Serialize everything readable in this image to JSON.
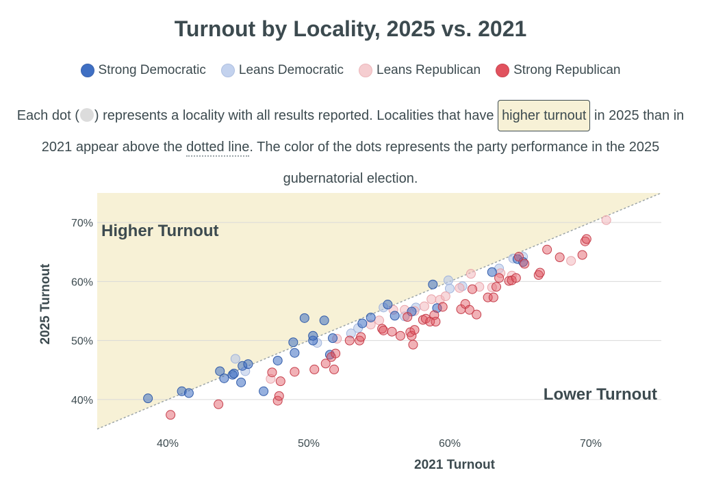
{
  "title": "Turnout by Locality, 2025 vs. 2021",
  "legend": [
    {
      "label": "Strong Democratic",
      "color": "#3f6fc3"
    },
    {
      "label": "Leans Democratic",
      "color": "#b7c8e8"
    },
    {
      "label": "Leans Republican",
      "color": "#f3c2c6"
    },
    {
      "label": "Strong Republican",
      "color": "#e1525e"
    }
  ],
  "description": {
    "part1": "Each dot (",
    "part2": ") represents a locality with all results reported. Localities that have ",
    "highlight": "higher turnout",
    "part3": " in 2025 than in 2021 appear above the ",
    "dotted": "dotted line",
    "part4": ". The color of the dots represents the party performance in the 2025 gubernatorial election."
  },
  "chart_data": {
    "type": "scatter",
    "xlabel": "2021 Turnout",
    "ylabel": "2025 Turnout",
    "xlim": [
      35,
      75
    ],
    "ylim": [
      35,
      75
    ],
    "xticks": [
      40,
      50,
      60,
      70
    ],
    "yticks": [
      40,
      50,
      60,
      70
    ],
    "xtick_labels": [
      "40%",
      "50%",
      "60%",
      "70%"
    ],
    "ytick_labels": [
      "40%",
      "50%",
      "60%",
      "70%"
    ],
    "annotations": {
      "upper_left": "Higher Turnout",
      "lower_right": "Lower Turnout"
    },
    "reference_line": "y = x",
    "series": [
      {
        "name": "Strong Democratic",
        "color": "#3f6fc3",
        "points": [
          [
            38.6,
            40.2
          ],
          [
            41.0,
            41.4
          ],
          [
            41.5,
            41.1
          ],
          [
            43.7,
            44.8
          ],
          [
            44.0,
            43.6
          ],
          [
            44.6,
            44.2
          ],
          [
            44.7,
            44.4
          ],
          [
            45.2,
            42.9
          ],
          [
            45.3,
            45.7
          ],
          [
            45.7,
            46.0
          ],
          [
            46.8,
            41.4
          ],
          [
            47.8,
            46.6
          ],
          [
            48.9,
            49.7
          ],
          [
            49.0,
            47.9
          ],
          [
            49.7,
            53.8
          ],
          [
            50.3,
            50.0
          ],
          [
            50.3,
            50.8
          ],
          [
            51.1,
            53.4
          ],
          [
            51.5,
            47.6
          ],
          [
            51.7,
            50.4
          ],
          [
            53.8,
            52.9
          ],
          [
            54.4,
            53.9
          ],
          [
            55.6,
            56.1
          ],
          [
            56.1,
            54.2
          ],
          [
            57.3,
            54.9
          ],
          [
            58.8,
            59.5
          ],
          [
            59.1,
            55.5
          ],
          [
            63.0,
            61.6
          ],
          [
            64.8,
            63.8
          ],
          [
            65.2,
            63.3
          ]
        ]
      },
      {
        "name": "Leans Democratic",
        "color": "#b7c8e8",
        "points": [
          [
            44.8,
            46.9
          ],
          [
            45.5,
            44.8
          ],
          [
            50.6,
            49.6
          ],
          [
            53.0,
            51.2
          ],
          [
            53.5,
            52.1
          ],
          [
            55.3,
            55.6
          ],
          [
            56.8,
            54.1
          ],
          [
            57.6,
            55.6
          ],
          [
            59.9,
            60.2
          ],
          [
            60.0,
            58.8
          ],
          [
            60.9,
            59.2
          ],
          [
            63.5,
            62.2
          ],
          [
            64.5,
            63.9
          ],
          [
            65.2,
            64.2
          ]
        ]
      },
      {
        "name": "Leans Republican",
        "color": "#f3c2c6",
        "points": [
          [
            47.3,
            43.5
          ],
          [
            52.0,
            50.3
          ],
          [
            54.4,
            52.7
          ],
          [
            55.0,
            53.4
          ],
          [
            56.0,
            55.2
          ],
          [
            56.8,
            55.2
          ],
          [
            57.5,
            55.0
          ],
          [
            58.2,
            55.8
          ],
          [
            58.7,
            57.0
          ],
          [
            59.3,
            56.9
          ],
          [
            59.7,
            57.5
          ],
          [
            60.7,
            58.9
          ],
          [
            61.5,
            61.3
          ],
          [
            62.1,
            59.1
          ],
          [
            63.0,
            59.0
          ],
          [
            63.6,
            61.4
          ],
          [
            64.4,
            61.0
          ],
          [
            68.6,
            63.5
          ],
          [
            71.1,
            70.4
          ]
        ]
      },
      {
        "name": "Strong Republican",
        "color": "#e1525e",
        "points": [
          [
            40.2,
            37.4
          ],
          [
            43.6,
            39.2
          ],
          [
            47.4,
            44.6
          ],
          [
            47.8,
            39.8
          ],
          [
            47.9,
            40.6
          ],
          [
            48.0,
            43.1
          ],
          [
            49.0,
            44.7
          ],
          [
            50.4,
            45.1
          ],
          [
            51.2,
            46.1
          ],
          [
            51.6,
            47.2
          ],
          [
            51.8,
            45.1
          ],
          [
            51.9,
            47.8
          ],
          [
            52.9,
            50.0
          ],
          [
            53.6,
            50.0
          ],
          [
            53.7,
            50.6
          ],
          [
            55.2,
            52.0
          ],
          [
            55.3,
            51.7
          ],
          [
            55.9,
            51.5
          ],
          [
            56.5,
            50.8
          ],
          [
            57.0,
            54.0
          ],
          [
            57.2,
            51.4
          ],
          [
            57.3,
            50.8
          ],
          [
            57.4,
            49.3
          ],
          [
            57.5,
            51.8
          ],
          [
            58.1,
            53.5
          ],
          [
            58.3,
            53.7
          ],
          [
            58.6,
            53.2
          ],
          [
            58.9,
            54.3
          ],
          [
            59.0,
            53.2
          ],
          [
            59.5,
            55.7
          ],
          [
            60.8,
            55.3
          ],
          [
            61.1,
            56.2
          ],
          [
            61.4,
            55.2
          ],
          [
            61.6,
            58.7
          ],
          [
            61.9,
            54.4
          ],
          [
            62.7,
            57.3
          ],
          [
            63.1,
            57.3
          ],
          [
            63.3,
            59.1
          ],
          [
            63.5,
            60.6
          ],
          [
            64.2,
            60.1
          ],
          [
            64.4,
            60.2
          ],
          [
            64.7,
            60.6
          ],
          [
            64.9,
            64.2
          ],
          [
            65.3,
            63.0
          ],
          [
            66.3,
            61.1
          ],
          [
            66.4,
            61.5
          ],
          [
            66.9,
            65.4
          ],
          [
            67.8,
            64.1
          ],
          [
            69.4,
            64.5
          ],
          [
            69.6,
            66.8
          ],
          [
            69.7,
            67.2
          ]
        ]
      }
    ]
  }
}
